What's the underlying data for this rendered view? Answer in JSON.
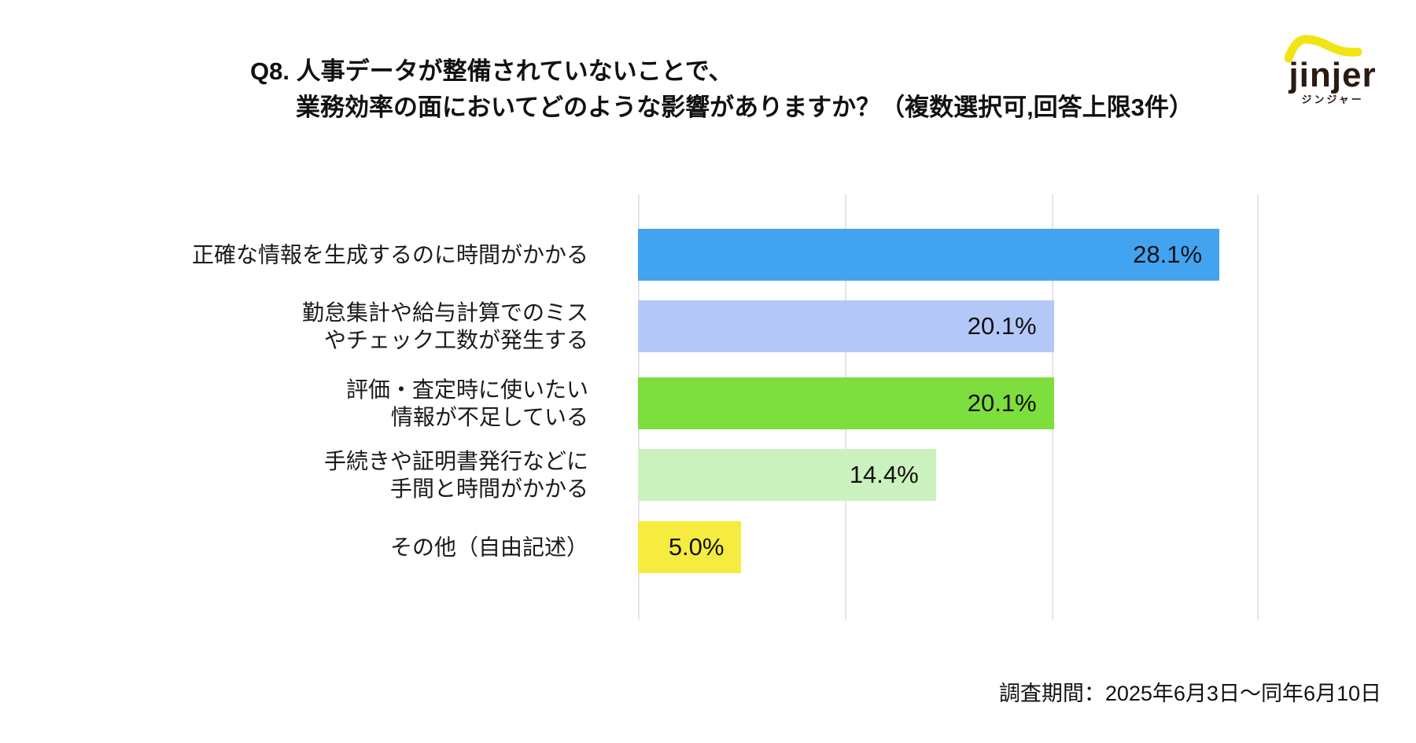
{
  "page": {
    "title_line1": "Q8. 人事データが整備されていないことで、",
    "title_line2": "業務効率の面においてどのような影響がありますか？（複数選択可,回答上限3件）",
    "footer": "調査期間：2025年6月3日〜同年6月10日"
  },
  "logo": {
    "brand": "jinjer",
    "brand_kana": "ジンジャー",
    "brand_color": "#2B1A12",
    "accent_color": "#F0E414"
  },
  "chart_data": {
    "type": "bar",
    "orientation": "horizontal",
    "categories": [
      "正確な情報を生成するのに時間がかかる",
      "勤怠集計や給与計算でのミス\nやチェック工数が発生する",
      "評価・査定時に使いたい\n情報が不足している",
      "手続きや証明書発行などに\n手間と時間がかかる",
      "その他（自由記述）"
    ],
    "values": [
      28.1,
      20.1,
      20.1,
      14.4,
      5.0
    ],
    "value_labels": [
      "28.1%",
      "20.1%",
      "20.1%",
      "14.4%",
      "5.0%"
    ],
    "bar_colors": [
      "#42A4F1",
      "#B4C8F8",
      "#7EDE3D",
      "#CBF2BE",
      "#F5EC3F"
    ],
    "xlim": [
      0,
      30
    ],
    "gridlines_percent": [
      0,
      10,
      20,
      30
    ],
    "grid": true,
    "legend": false,
    "value_label_position": "inside-right"
  }
}
